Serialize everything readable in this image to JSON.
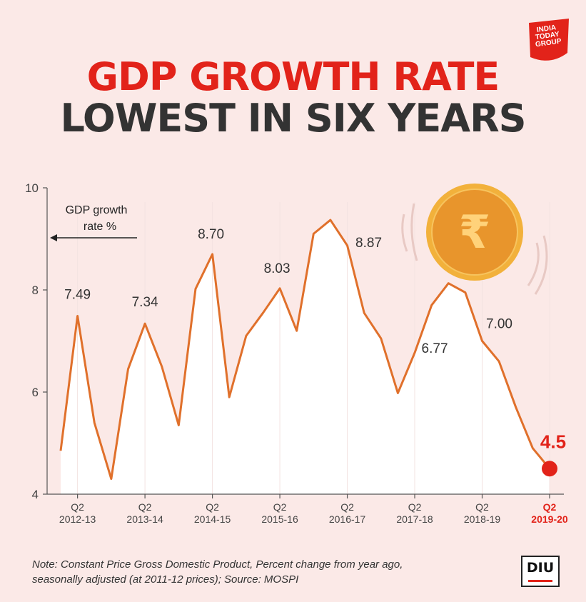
{
  "header": {
    "title_line1": "GDP GROWTH RATE",
    "title_line2": "LOWEST IN SIX YEARS",
    "logo_text": [
      "INDIA",
      "TODAY",
      "GROUP"
    ]
  },
  "colors": {
    "title_red": "#e2231a",
    "title_dark": "#333333",
    "line": "#e0702b",
    "highlight": "#e2231a",
    "coin": "#e8952c",
    "background": "#fbe9e7"
  },
  "chart_data": {
    "type": "line",
    "ylim": [
      4,
      10
    ],
    "y_ticks": [
      "4",
      "6",
      "8",
      "10"
    ],
    "axis_note_line1": "GDP growth",
    "axis_note_line2": "rate %",
    "x_ticks": [
      {
        "line1": "Q2",
        "line2": "2012-13",
        "index": 1
      },
      {
        "line1": "Q2",
        "line2": "2013-14",
        "index": 5
      },
      {
        "line1": "Q2",
        "line2": "2014-15",
        "index": 9
      },
      {
        "line1": "Q2",
        "line2": "2015-16",
        "index": 13
      },
      {
        "line1": "Q2",
        "line2": "2016-17",
        "index": 17
      },
      {
        "line1": "Q2",
        "line2": "2017-18",
        "index": 21
      },
      {
        "line1": "Q2",
        "line2": "2018-19",
        "index": 25
      },
      {
        "line1": "Q2",
        "line2": "2019-20",
        "index": 29,
        "highlight": true
      }
    ],
    "values": [
      4.85,
      7.49,
      5.4,
      4.3,
      6.45,
      7.34,
      6.5,
      5.35,
      8.02,
      8.7,
      5.9,
      7.1,
      7.55,
      8.03,
      7.2,
      9.1,
      9.37,
      8.87,
      7.55,
      7.05,
      5.98,
      6.77,
      7.7,
      8.13,
      7.95,
      7.0,
      6.6,
      5.7,
      4.9,
      4.5
    ],
    "data_labels": [
      {
        "index": 1,
        "text": "7.49"
      },
      {
        "index": 5,
        "text": "7.34"
      },
      {
        "index": 9,
        "text": "8.70"
      },
      {
        "index": 13,
        "text": "8.03"
      },
      {
        "index": 17,
        "text": "8.87"
      },
      {
        "index": 21,
        "text": "6.77"
      },
      {
        "index": 25,
        "text": "7.00"
      },
      {
        "index": 29,
        "text": "4.5",
        "highlight": true
      }
    ],
    "coin_symbol": "₹"
  },
  "footer": {
    "note_line1": "Note: Constant Price Gross Domestic Product, Percent change from year ago,",
    "note_line2": "seasonally adjusted (at 2011-12 prices); Source: MOSPI",
    "badge": "DIU"
  }
}
